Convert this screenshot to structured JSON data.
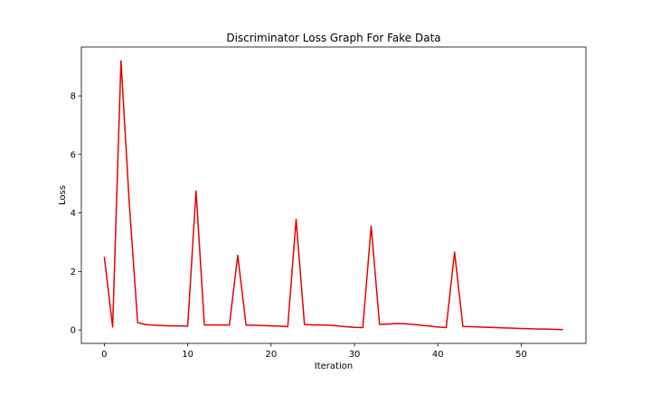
{
  "chart_data": {
    "type": "line",
    "title": "Discriminator Loss Graph For Fake Data",
    "xlabel": "Iteration",
    "ylabel": "Loss",
    "xlim": [
      -2.75,
      57.75
    ],
    "ylim": [
      -0.46,
      9.67
    ],
    "xticks": [
      0,
      10,
      20,
      30,
      40,
      50
    ],
    "yticks": [
      0,
      2,
      4,
      6,
      8
    ],
    "grid": false,
    "legend": "none",
    "series": [
      {
        "color": "#e60000",
        "x": [
          0,
          1,
          2,
          3,
          4,
          5,
          6,
          7,
          8,
          9,
          10,
          11,
          12,
          13,
          14,
          15,
          16,
          17,
          18,
          19,
          20,
          21,
          22,
          23,
          24,
          25,
          26,
          27,
          28,
          29,
          30,
          31,
          32,
          33,
          34,
          35,
          36,
          37,
          38,
          39,
          40,
          41,
          42,
          43,
          44,
          45,
          46,
          47,
          48,
          49,
          50,
          51,
          52,
          53,
          54,
          55
        ],
        "y": [
          2.5,
          0.1,
          9.2,
          4.3,
          0.25,
          0.18,
          0.16,
          0.15,
          0.14,
          0.14,
          0.13,
          4.75,
          0.17,
          0.17,
          0.17,
          0.17,
          2.55,
          0.16,
          0.16,
          0.15,
          0.14,
          0.13,
          0.11,
          3.78,
          0.19,
          0.17,
          0.17,
          0.16,
          0.14,
          0.11,
          0.09,
          0.08,
          3.55,
          0.19,
          0.2,
          0.22,
          0.21,
          0.19,
          0.16,
          0.13,
          0.1,
          0.08,
          2.66,
          0.12,
          0.11,
          0.1,
          0.09,
          0.08,
          0.07,
          0.06,
          0.05,
          0.04,
          0.03,
          0.03,
          0.02,
          0.01
        ]
      }
    ]
  }
}
